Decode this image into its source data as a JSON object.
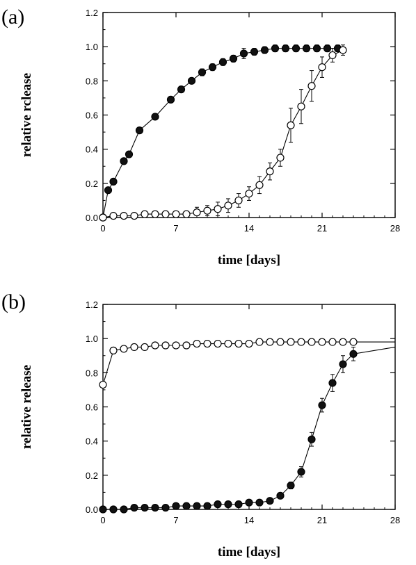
{
  "panels": [
    {
      "label": "(a)"
    },
    {
      "label": "(b)"
    }
  ],
  "chart_data": [
    {
      "type": "scatter",
      "panel": "(a)",
      "xlabel": "time [days]",
      "ylabel": "relative rclease",
      "xlim": [
        0,
        28
      ],
      "ylim": [
        0,
        1.2
      ],
      "xticks": [
        0,
        7,
        14,
        21,
        28
      ],
      "yticks": [
        0.0,
        0.2,
        0.4,
        0.6,
        0.8,
        1.0,
        1.2
      ],
      "ytick_labels": [
        "0.0",
        "0.2",
        "0.4",
        "0.6",
        "0.8",
        "1.0",
        "1.2"
      ],
      "grid": false,
      "series": [
        {
          "marker": "filled-circle",
          "color": "#111111",
          "x": [
            0,
            0.5,
            1,
            2,
            2.5,
            3.5,
            5,
            6.5,
            7.5,
            8.5,
            9.5,
            10.5,
            11.5,
            12.5,
            13.5,
            14.5,
            15.5,
            16.5,
            17.5,
            18.5,
            19.5,
            20.5,
            21.5,
            22.5
          ],
          "y": [
            0.0,
            0.16,
            0.21,
            0.33,
            0.37,
            0.51,
            0.59,
            0.69,
            0.75,
            0.8,
            0.85,
            0.88,
            0.91,
            0.93,
            0.96,
            0.97,
            0.98,
            0.99,
            0.99,
            0.99,
            0.99,
            0.99,
            0.99,
            0.99
          ],
          "err": [
            0,
            0,
            0,
            0,
            0,
            0,
            0,
            0,
            0,
            0,
            0.02,
            0.02,
            0.02,
            0.02,
            0.03,
            0.02,
            0.02,
            0.02,
            0.02,
            0.02,
            0.02,
            0.02,
            0.02,
            0.02
          ]
        },
        {
          "marker": "open-circle",
          "color": "#111111",
          "x": [
            0,
            1,
            2,
            3,
            4,
            5,
            6,
            7,
            8,
            9,
            10,
            11,
            12,
            13,
            14,
            15,
            16,
            17,
            18,
            19,
            20,
            21,
            22,
            23
          ],
          "y": [
            0.0,
            0.01,
            0.01,
            0.01,
            0.02,
            0.02,
            0.02,
            0.02,
            0.02,
            0.03,
            0.04,
            0.05,
            0.07,
            0.1,
            0.14,
            0.19,
            0.27,
            0.35,
            0.54,
            0.65,
            0.77,
            0.88,
            0.95,
            0.98
          ],
          "err": [
            0,
            0,
            0,
            0,
            0,
            0,
            0,
            0,
            0,
            0.03,
            0.03,
            0.04,
            0.04,
            0.04,
            0.04,
            0.05,
            0.05,
            0.05,
            0.1,
            0.1,
            0.09,
            0.06,
            0.04,
            0.03
          ]
        }
      ]
    },
    {
      "type": "scatter",
      "panel": "(b)",
      "xlabel": "time [days]",
      "ylabel": "relative release",
      "xlim": [
        0,
        28
      ],
      "ylim": [
        0,
        1.2
      ],
      "xticks": [
        0,
        7,
        14,
        21,
        28
      ],
      "yticks": [
        0.0,
        0.2,
        0.4,
        0.6,
        0.8,
        1.0,
        1.2
      ],
      "ytick_labels": [
        "0.0",
        "0.2",
        "0.4",
        "0.6",
        "0.8",
        "1.0",
        "1.2"
      ],
      "grid": false,
      "series": [
        {
          "marker": "open-circle",
          "color": "#111111",
          "x": [
            0,
            1,
            2,
            3,
            4,
            5,
            6,
            7,
            8,
            9,
            10,
            11,
            12,
            13,
            14,
            15,
            16,
            17,
            18,
            19,
            20,
            21,
            22,
            23,
            24
          ],
          "y": [
            0.73,
            0.93,
            0.94,
            0.95,
            0.95,
            0.96,
            0.96,
            0.96,
            0.96,
            0.97,
            0.97,
            0.97,
            0.97,
            0.97,
            0.97,
            0.98,
            0.98,
            0.98,
            0.98,
            0.98,
            0.98,
            0.98,
            0.98,
            0.98,
            0.98
          ],
          "err": [
            0,
            0,
            0,
            0,
            0,
            0,
            0,
            0,
            0,
            0,
            0,
            0,
            0,
            0,
            0,
            0,
            0,
            0,
            0,
            0,
            0,
            0,
            0,
            0,
            0
          ],
          "line_extends_to_x": 28,
          "line_extends_to_y": 0.98
        },
        {
          "marker": "filled-circle",
          "color": "#111111",
          "x": [
            0,
            1,
            2,
            3,
            4,
            5,
            6,
            7,
            8,
            9,
            10,
            11,
            12,
            13,
            14,
            15,
            16,
            17,
            18,
            19,
            20,
            21,
            22,
            23,
            24
          ],
          "y": [
            0.0,
            0.0,
            0.0,
            0.01,
            0.01,
            0.01,
            0.01,
            0.02,
            0.02,
            0.02,
            0.02,
            0.03,
            0.03,
            0.03,
            0.04,
            0.04,
            0.05,
            0.08,
            0.14,
            0.22,
            0.41,
            0.61,
            0.74,
            0.85,
            0.91
          ],
          "err": [
            0,
            0,
            0,
            0,
            0,
            0,
            0,
            0,
            0,
            0,
            0,
            0,
            0,
            0,
            0,
            0,
            0,
            0,
            0.02,
            0.03,
            0.04,
            0.04,
            0.05,
            0.05,
            0.04
          ],
          "line_extends_to_x": 28,
          "line_extends_to_y": 0.95
        }
      ]
    }
  ]
}
